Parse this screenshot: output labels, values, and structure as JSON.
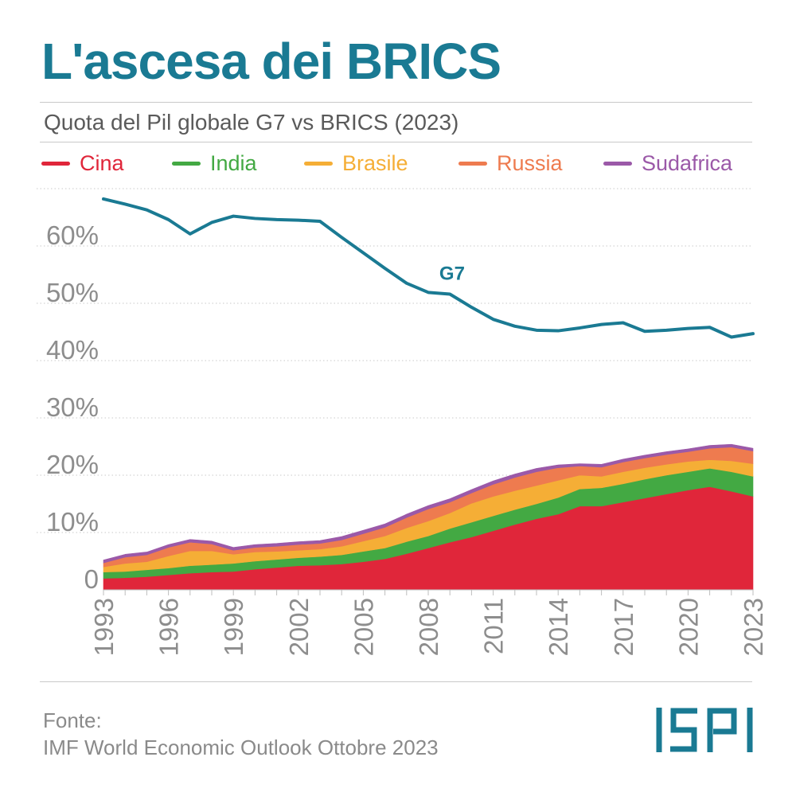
{
  "title": "L'ascesa dei BRICS",
  "subtitle": "Quota del Pil globale G7 vs BRICS (2023)",
  "source": {
    "label": "Fonte:",
    "text": "IMF World Economic Outlook Ottobre 2023"
  },
  "logo": {
    "text": "ISPI",
    "color": "#1a7a93"
  },
  "chart_data": {
    "type": "area",
    "stacked": true,
    "grid": true,
    "legend_position": "top",
    "ylim": [
      0,
      70
    ],
    "y_ticks": [
      0,
      10,
      20,
      30,
      40,
      50,
      60
    ],
    "y_tick_labels": [
      "0",
      "10%",
      "20%",
      "30%",
      "40%",
      "50%",
      "60%"
    ],
    "x_ticks": [
      "1993",
      "1996",
      "1999",
      "2002",
      "2005",
      "2008",
      "2011",
      "2014",
      "2017",
      "2020",
      "2023"
    ],
    "x": [
      1993,
      1994,
      1995,
      1996,
      1997,
      1998,
      1999,
      2000,
      2001,
      2002,
      2003,
      2004,
      2005,
      2006,
      2007,
      2008,
      2009,
      2010,
      2011,
      2012,
      2013,
      2014,
      2015,
      2016,
      2017,
      2018,
      2019,
      2020,
      2021,
      2022,
      2023
    ],
    "series": [
      {
        "name": "Cina",
        "color": "#e0263a",
        "values": [
          2.0,
          2.1,
          2.3,
          2.6,
          2.9,
          3.1,
          3.2,
          3.6,
          3.9,
          4.2,
          4.3,
          4.5,
          4.9,
          5.4,
          6.3,
          7.3,
          8.3,
          9.2,
          10.3,
          11.4,
          12.4,
          13.2,
          14.6,
          14.6,
          15.3,
          16.0,
          16.7,
          17.4,
          18.0,
          17.2,
          16.3
        ]
      },
      {
        "name": "India",
        "color": "#43a943",
        "values": [
          1.1,
          1.1,
          1.2,
          1.2,
          1.3,
          1.3,
          1.4,
          1.4,
          1.4,
          1.4,
          1.5,
          1.6,
          1.8,
          1.9,
          2.1,
          2.1,
          2.4,
          2.6,
          2.6,
          2.6,
          2.6,
          2.9,
          3.0,
          3.2,
          3.2,
          3.3,
          3.3,
          3.2,
          3.2,
          3.4,
          3.5
        ]
      },
      {
        "name": "Brasile",
        "color": "#f5ae36",
        "values": [
          0.9,
          1.4,
          1.4,
          2.1,
          2.6,
          2.4,
          1.6,
          1.6,
          1.4,
          1.3,
          1.3,
          1.5,
          1.8,
          2.1,
          2.4,
          2.6,
          2.7,
          3.3,
          3.4,
          3.3,
          3.2,
          3.0,
          2.4,
          2.0,
          2.1,
          2.0,
          1.9,
          1.8,
          1.5,
          1.9,
          2.2
        ]
      },
      {
        "name": "Russia",
        "color": "#ee7b4f",
        "values": [
          0.7,
          1.1,
          1.2,
          1.5,
          1.5,
          1.2,
          0.7,
          0.8,
          0.9,
          1.0,
          1.0,
          1.1,
          1.3,
          1.5,
          1.8,
          2.1,
          1.9,
          1.8,
          2.1,
          2.3,
          2.4,
          2.2,
          1.6,
          1.6,
          1.7,
          1.7,
          1.7,
          1.7,
          2.0,
          2.4,
          2.2
        ]
      },
      {
        "name": "Sudafrica",
        "color": "#9b59a8",
        "values": [
          0.5,
          0.5,
          0.5,
          0.5,
          0.5,
          0.5,
          0.5,
          0.5,
          0.5,
          0.5,
          0.5,
          0.6,
          0.6,
          0.6,
          0.6,
          0.6,
          0.6,
          0.6,
          0.6,
          0.6,
          0.6,
          0.5,
          0.4,
          0.5,
          0.5,
          0.5,
          0.5,
          0.5,
          0.5,
          0.5,
          0.5
        ]
      },
      {
        "name": "G7",
        "color": "#1a7a93",
        "type": "line",
        "label": "G7",
        "values": [
          68.2,
          67.3,
          66.3,
          64.6,
          62.1,
          64.1,
          65.2,
          64.8,
          64.6,
          64.5,
          64.3,
          61.5,
          58.8,
          56.1,
          53.5,
          51.9,
          51.6,
          49.3,
          47.2,
          46.0,
          45.3,
          45.2,
          45.7,
          46.3,
          46.6,
          45.1,
          45.3,
          45.6,
          45.8,
          44.1,
          44.7
        ]
      }
    ]
  }
}
